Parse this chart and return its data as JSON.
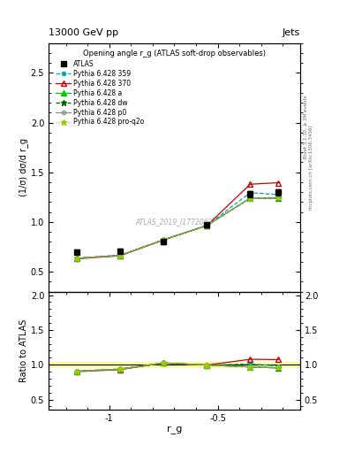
{
  "title_top": "13000 GeV pp",
  "title_right": "Jets",
  "plot_title": "Opening angle r_g (ATLAS soft-drop observables)",
  "xlabel": "r_g",
  "ylabel_main": "(1/σ) dσ/d r_g",
  "ylabel_ratio": "Ratio to ATLAS",
  "right_label_top": "Rivet 3.1.10, ≥ 3M events",
  "right_label_bot": "mcplots.cern.ch [arXiv:1306.3436]",
  "watermark": "ATLAS_2019_I1772062",
  "x_values": [
    -1.15,
    -0.95,
    -0.75,
    -0.55,
    -0.35,
    -0.22
  ],
  "atlas_y": [
    0.7,
    0.71,
    0.8,
    0.97,
    1.28,
    1.3
  ],
  "atlas_yerr": [
    0.02,
    0.02,
    0.02,
    0.02,
    0.03,
    0.03
  ],
  "pythia_359_y": [
    0.635,
    0.665,
    0.82,
    0.965,
    1.295,
    1.275
  ],
  "pythia_370_y": [
    0.63,
    0.66,
    0.82,
    0.965,
    1.38,
    1.395
  ],
  "pythia_a_y": [
    0.635,
    0.665,
    0.82,
    0.965,
    1.24,
    1.24
  ],
  "pythia_dw_y": [
    0.635,
    0.665,
    0.82,
    0.965,
    1.24,
    1.24
  ],
  "pythia_p0_y": [
    0.635,
    0.665,
    0.82,
    0.965,
    1.24,
    1.24
  ],
  "pythia_proq2o_y": [
    0.635,
    0.665,
    0.82,
    0.965,
    1.24,
    1.25
  ],
  "ylim_main": [
    0.3,
    2.8
  ],
  "ylim_ratio": [
    0.35,
    2.05
  ],
  "yticks_main": [
    0.5,
    1.0,
    1.5,
    2.0,
    2.5
  ],
  "yticks_ratio": [
    0.5,
    1.0,
    1.5,
    2.0
  ],
  "xlim": [
    -1.28,
    -0.12
  ],
  "color_atlas": "#000000",
  "color_359": "#00aaaa",
  "color_370": "#cc0000",
  "color_a": "#00cc00",
  "color_dw": "#006600",
  "color_p0": "#888888",
  "color_proq2o": "#99cc00",
  "atlas_band_color": "#ffff88",
  "atlas_band_alpha": 0.8
}
